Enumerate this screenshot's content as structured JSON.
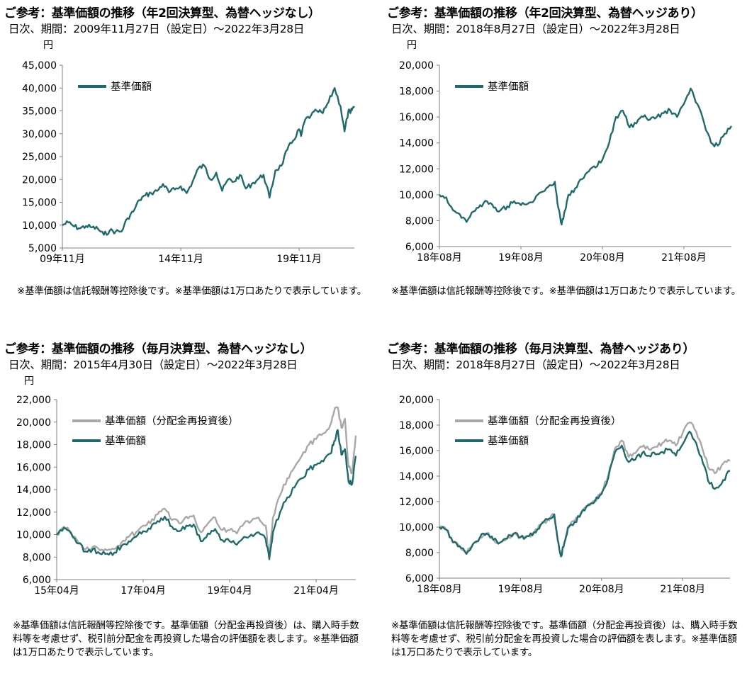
{
  "colors": {
    "nav": "#1f6b6b",
    "reinvest": "#a8a8a8",
    "axis": "#7f7f7f"
  },
  "panels": [
    {
      "title": "ご参考：基準価額の推移（年2回決算型、為替ヘッジなし）",
      "subtitle": "日次、期間：2009年11月27日（設定日）～2022年3月28日",
      "unit": "円",
      "note": "※基準価額は信託報酬等控除後です。※基準価額は1万口あたりで表示しています。",
      "chart_data": {
        "type": "line",
        "ylim": [
          5000,
          45000
        ],
        "yticks": [
          "5,000",
          "10,000",
          "15,000",
          "20,000",
          "25,000",
          "30,000",
          "35,000",
          "40,000",
          "45,000"
        ],
        "xticks": [
          {
            "label": "09年11月",
            "t": 0
          },
          {
            "label": "14年11月",
            "t": 60
          },
          {
            "label": "19年11月",
            "t": 120
          }
        ],
        "xlim": [
          0,
          148
        ],
        "legend": "upper-left",
        "series": [
          {
            "name": "基準価額",
            "color": "#1f6b6b",
            "x": [
              0,
              3,
              6,
              9,
              12,
              15,
              18,
              21,
              24,
              27,
              30,
              33,
              36,
              39,
              42,
              45,
              48,
              51,
              54,
              57,
              60,
              63,
              66,
              69,
              72,
              75,
              78,
              81,
              84,
              87,
              90,
              93,
              96,
              99,
              102,
              105,
              108,
              111,
              114,
              117,
              120,
              121,
              123,
              126,
              129,
              132,
              135,
              138,
              141,
              143,
              145,
              146,
              147,
              148
            ],
            "values": [
              10000,
              10600,
              9700,
              9300,
              9800,
              9500,
              9200,
              7900,
              8800,
              8600,
              8600,
              11500,
              13000,
              15500,
              16500,
              17000,
              17500,
              19000,
              17200,
              17800,
              18500,
              17000,
              19500,
              22500,
              23000,
              20000,
              21500,
              17500,
              20000,
              19500,
              21000,
              18000,
              19000,
              20000,
              21000,
              16000,
              22000,
              23000,
              26500,
              28500,
              31000,
              29500,
              33000,
              34000,
              35000,
              34500,
              37000,
              40000,
              36000,
              30500,
              35000,
              34500,
              35500,
              36000
            ]
          }
        ]
      }
    },
    {
      "title": "ご参考：基準価額の推移（年2回決算型、為替ヘッジあり）",
      "subtitle": "日次、期間：2018年8月27日（設定日）～2022年3月28日",
      "unit": "円",
      "note": "※基準価額は信託報酬等控除後です。※基準価額は1万口あたりで表示しています。",
      "chart_data": {
        "type": "line",
        "ylim": [
          6000,
          20000
        ],
        "yticks": [
          "6,000",
          "8,000",
          "10,000",
          "12,000",
          "14,000",
          "16,000",
          "18,000",
          "20,000"
        ],
        "xticks": [
          {
            "label": "18年08月",
            "t": 0
          },
          {
            "label": "19年08月",
            "t": 12
          },
          {
            "label": "20年08月",
            "t": 24
          },
          {
            "label": "21年08月",
            "t": 36
          }
        ],
        "xlim": [
          0,
          43
        ],
        "legend": "upper-left",
        "series": [
          {
            "name": "基準価額",
            "color": "#1f6b6b",
            "x": [
              0,
              1,
              2,
              3,
              4,
              5,
              6,
              7,
              8,
              9,
              10,
              11,
              12,
              13,
              14,
              15,
              16,
              17,
              17.5,
              18,
              18.5,
              19,
              20,
              21,
              22,
              23,
              24,
              25,
              26,
              27,
              28,
              29,
              30,
              31,
              32,
              33,
              34,
              35,
              36,
              37,
              38,
              39,
              40,
              41,
              42,
              43
            ],
            "values": [
              10000,
              9800,
              8800,
              8500,
              7900,
              8700,
              9200,
              9500,
              9000,
              8800,
              9100,
              9500,
              9200,
              9300,
              9600,
              10200,
              10600,
              11000,
              9000,
              7700,
              8800,
              10000,
              10500,
              11200,
              11800,
              12100,
              12700,
              14000,
              16000,
              16500,
              15200,
              15500,
              16000,
              15800,
              16000,
              16300,
              16500,
              16000,
              17000,
              18200,
              17000,
              15500,
              14000,
              13800,
              14700,
              15300
            ]
          }
        ]
      }
    },
    {
      "title": "ご参考：基準価額の推移（毎月決算型、為替ヘッジなし）",
      "subtitle": "日次、期間：2015年4月30日（設定日）～2022年3月28日",
      "unit": "円",
      "note": "※基準価額は信託報酬等控除後です。基準価額（分配金再投資後）は、購入時手数料等を考慮せず、税引前分配金を再投資した場合の評価額を表します。※基準価額は1万口あたりで表示しています。",
      "chart_data": {
        "type": "line",
        "ylim": [
          6000,
          22000
        ],
        "yticks": [
          "6,000",
          "8,000",
          "10,000",
          "12,000",
          "14,000",
          "16,000",
          "18,000",
          "20,000",
          "22,000"
        ],
        "xticks": [
          {
            "label": "15年04月",
            "t": 0
          },
          {
            "label": "17年04月",
            "t": 24
          },
          {
            "label": "19年04月",
            "t": 48
          },
          {
            "label": "21年04月",
            "t": 72
          }
        ],
        "xlim": [
          0,
          83
        ],
        "legend": "upper-left",
        "series": [
          {
            "name": "基準価額（分配金再投資後）",
            "color": "#a8a8a8",
            "x": [
              0,
              2,
              4,
              6,
              8,
              10,
              12,
              14,
              16,
              18,
              20,
              22,
              24,
              26,
              28,
              30,
              32,
              34,
              36,
              38,
              40,
              42,
              44,
              46,
              48,
              50,
              52,
              54,
              56,
              58,
              59,
              60,
              62,
              64,
              66,
              68,
              70,
              72,
              74,
              76,
              77,
              78,
              79,
              80,
              81,
              82,
              83
            ],
            "values": [
              10000,
              10700,
              10200,
              9300,
              8700,
              8900,
              8600,
              8600,
              8700,
              9300,
              9800,
              10200,
              10800,
              11000,
              11800,
              12300,
              11300,
              11000,
              11600,
              11700,
              10200,
              11000,
              11500,
              10400,
              10400,
              10100,
              11000,
              11200,
              11500,
              10800,
              8000,
              11500,
              13500,
              15000,
              16000,
              17000,
              18000,
              18500,
              19000,
              19800,
              21000,
              21300,
              19500,
              20300,
              16000,
              15500,
              18800
            ]
          },
          {
            "name": "基準価額",
            "color": "#1f6b6b",
            "x": [
              0,
              2,
              4,
              6,
              8,
              10,
              12,
              14,
              16,
              18,
              20,
              22,
              24,
              26,
              28,
              30,
              32,
              34,
              36,
              38,
              40,
              42,
              44,
              46,
              48,
              50,
              52,
              54,
              56,
              58,
              59,
              60,
              62,
              64,
              66,
              68,
              70,
              72,
              74,
              76,
              77,
              78,
              79,
              80,
              81,
              82,
              83
            ],
            "values": [
              10000,
              10600,
              10100,
              9200,
              8500,
              8700,
              8300,
              8300,
              8400,
              9000,
              9400,
              9800,
              10300,
              10500,
              11200,
              11600,
              10700,
              10300,
              10800,
              10900,
              9400,
              10100,
              10500,
              9500,
              9400,
              9100,
              9800,
              10000,
              10200,
              9600,
              7800,
              10200,
              12000,
              13300,
              14200,
              15000,
              15800,
              16200,
              16500,
              17200,
              18300,
              19300,
              17100,
              17600,
              14700,
              14500,
              17000
            ]
          }
        ]
      }
    },
    {
      "title": "ご参考：基準価額の推移（毎月決算型、為替ヘッジあり）",
      "subtitle": "日次、期間：2018年8月27日（設定日）～2022年3月28日",
      "unit": "円",
      "note": "※基準価額は信託報酬等控除後です。基準価額（分配金再投資後）は、購入時手数料等を考慮せず、税引前分配金を再投資した場合の評価額を表します。※基準価額は1万口あたりで表示しています。",
      "chart_data": {
        "type": "line",
        "ylim": [
          6000,
          20000
        ],
        "yticks": [
          "6,000",
          "8,000",
          "10,000",
          "12,000",
          "14,000",
          "16,000",
          "18,000",
          "20,000"
        ],
        "xticks": [
          {
            "label": "18年08月",
            "t": 0
          },
          {
            "label": "19年08月",
            "t": 12
          },
          {
            "label": "20年08月",
            "t": 24
          },
          {
            "label": "21年08月",
            "t": 36
          }
        ],
        "xlim": [
          0,
          43
        ],
        "legend": "upper-left",
        "series": [
          {
            "name": "基準価額（分配金再投資後）",
            "color": "#a8a8a8",
            "x": [
              0,
              1,
              2,
              3,
              4,
              5,
              6,
              7,
              8,
              9,
              10,
              11,
              12,
              13,
              14,
              15,
              16,
              17,
              17.5,
              18,
              18.5,
              19,
              20,
              21,
              22,
              23,
              24,
              25,
              26,
              27,
              28,
              29,
              30,
              31,
              32,
              33,
              34,
              35,
              36,
              37,
              38,
              39,
              40,
              41,
              42,
              43
            ],
            "values": [
              10000,
              9800,
              8800,
              8500,
              7900,
              8700,
              9200,
              9500,
              9000,
              8800,
              9100,
              9500,
              9200,
              9300,
              9600,
              10200,
              10600,
              11000,
              9000,
              7700,
              8800,
              10000,
              10500,
              11200,
              11800,
              12100,
              12700,
              14100,
              16200,
              16800,
              15500,
              15800,
              16300,
              16100,
              16300,
              16600,
              16800,
              16400,
              17400,
              18200,
              17500,
              16000,
              14500,
              14300,
              15000,
              15200
            ]
          },
          {
            "name": "基準価額",
            "color": "#1f6b6b",
            "x": [
              0,
              1,
              2,
              3,
              4,
              5,
              6,
              7,
              8,
              9,
              10,
              11,
              12,
              13,
              14,
              15,
              16,
              17,
              17.5,
              18,
              18.5,
              19,
              20,
              21,
              22,
              23,
              24,
              25,
              26,
              27,
              28,
              29,
              30,
              31,
              32,
              33,
              34,
              35,
              36,
              37,
              38,
              39,
              40,
              41,
              42,
              43
            ],
            "values": [
              10000,
              9800,
              8800,
              8500,
              7900,
              8700,
              9200,
              9500,
              9000,
              8800,
              9100,
              9500,
              9200,
              9300,
              9600,
              10200,
              10600,
              11000,
              9000,
              7700,
              8800,
              9900,
              10400,
              11100,
              11700,
              12000,
              12600,
              13900,
              15900,
              16400,
              15100,
              15300,
              15800,
              15600,
              15700,
              15900,
              16100,
              15600,
              16500,
              17500,
              16600,
              15000,
              13400,
              13100,
              13700,
              14400
            ]
          }
        ]
      }
    }
  ]
}
